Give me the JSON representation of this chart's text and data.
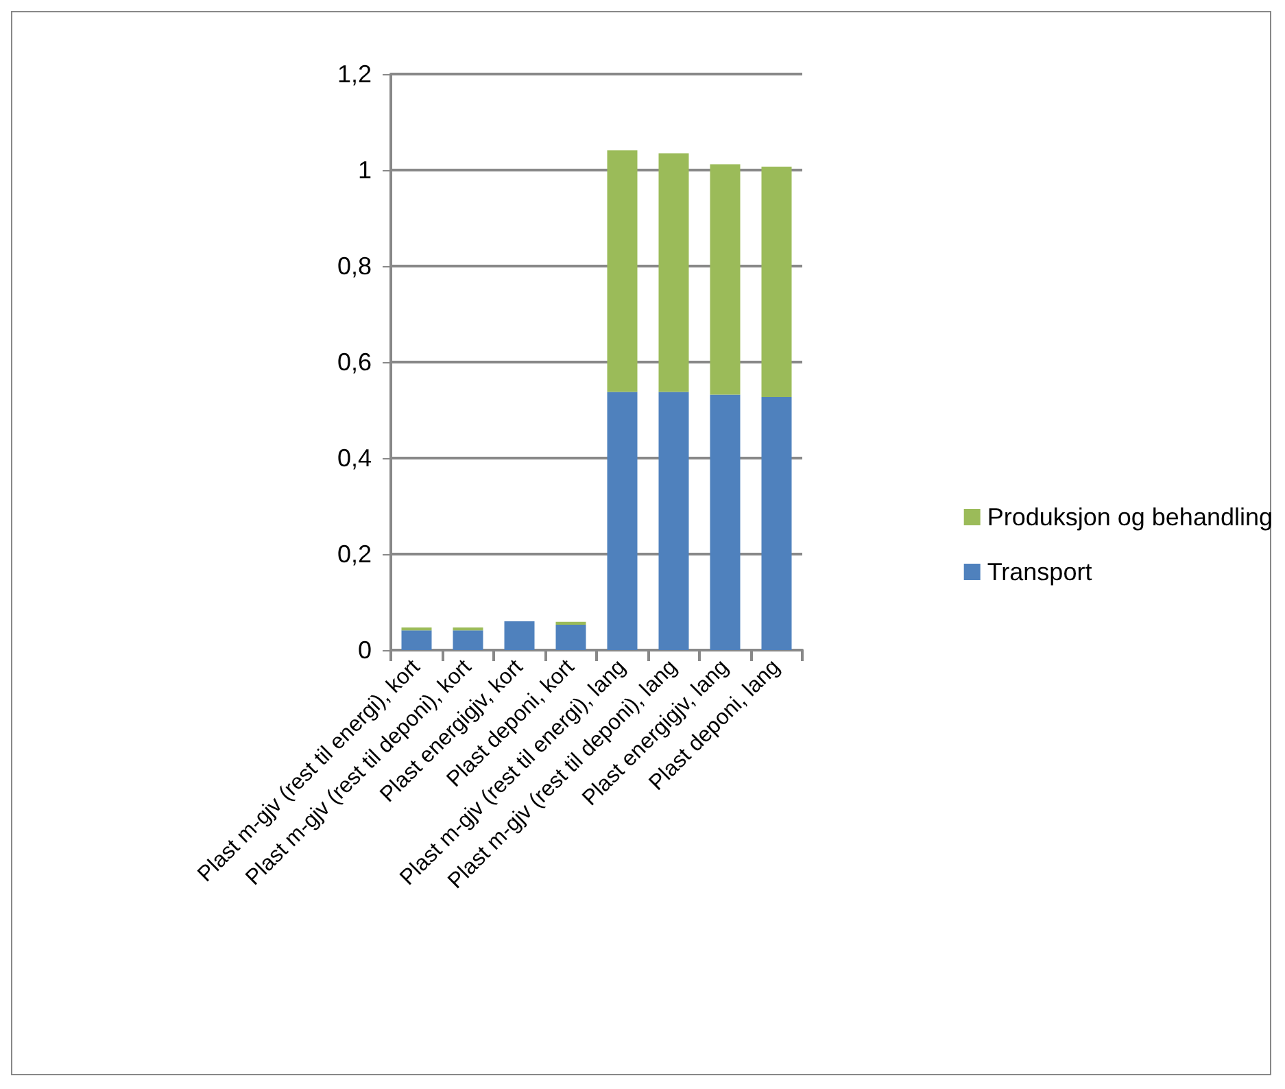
{
  "chart_data": {
    "type": "bar",
    "stacked": true,
    "categories": [
      "Plast m-gjv (rest til energi), kort",
      "Plast m-gjv (rest til deponi), kort",
      "Plast energigjv, kort",
      "Plast deponi, kort",
      "Plast m-gjv (rest til energi), lang",
      "Plast m-gjv (rest til deponi), lang",
      "Plast energigjv, lang",
      "Plast deponi, lang"
    ],
    "series": [
      {
        "name": "Transport",
        "color": "#4f81bd",
        "values": [
          0.041,
          0.041,
          0.06,
          0.053,
          0.538,
          0.538,
          0.532,
          0.527
        ]
      },
      {
        "name": "Produksjon og behandling",
        "color": "#9bbb59",
        "values": [
          0.006,
          0.006,
          0,
          0.006,
          0.503,
          0.497,
          0.48,
          0.48
        ]
      }
    ],
    "ylim": [
      0,
      1.2
    ],
    "yticks": [
      {
        "value": 0,
        "label": "0"
      },
      {
        "value": 0.2,
        "label": "0,2"
      },
      {
        "value": 0.4,
        "label": "0,4"
      },
      {
        "value": 0.6,
        "label": "0,6"
      },
      {
        "value": 0.8,
        "label": "0,8"
      },
      {
        "value": 1,
        "label": "1"
      },
      {
        "value": 1.2,
        "label": "1,2"
      }
    ],
    "grid": "y",
    "legend": "right"
  }
}
